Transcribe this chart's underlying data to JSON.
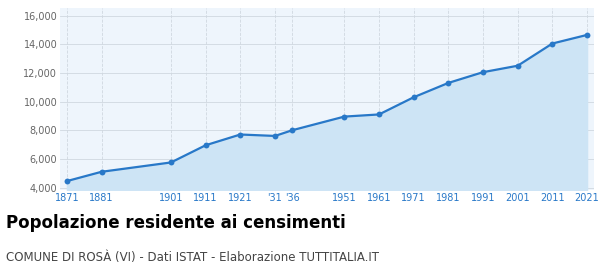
{
  "years": [
    1871,
    1881,
    1901,
    1911,
    1921,
    1931,
    1936,
    1951,
    1961,
    1971,
    1981,
    1991,
    2001,
    2011,
    2021
  ],
  "population": [
    4450,
    5100,
    5750,
    6950,
    7700,
    7600,
    8000,
    8950,
    9100,
    10300,
    11300,
    12050,
    12500,
    14050,
    14650
  ],
  "x_labels": [
    "1871",
    "1881",
    "1901",
    "1911",
    "1921",
    "'31",
    "'36",
    "1951",
    "1961",
    "1971",
    "1981",
    "1991",
    "2001",
    "2011",
    "2021"
  ],
  "line_color": "#2878c8",
  "fill_color": "#cde4f5",
  "marker_color": "#2878c8",
  "grid_color": "#d0d8e0",
  "background_color": "#eef5fc",
  "ylim": [
    3800,
    16500
  ],
  "yticks": [
    4000,
    6000,
    8000,
    10000,
    12000,
    14000,
    16000
  ],
  "title": "Popolazione residente ai censimenti",
  "subtitle": "COMUNE DI ROSÀ (VI) - Dati ISTAT - Elaborazione TUTTITALIA.IT",
  "title_fontsize": 12,
  "subtitle_fontsize": 8.5
}
